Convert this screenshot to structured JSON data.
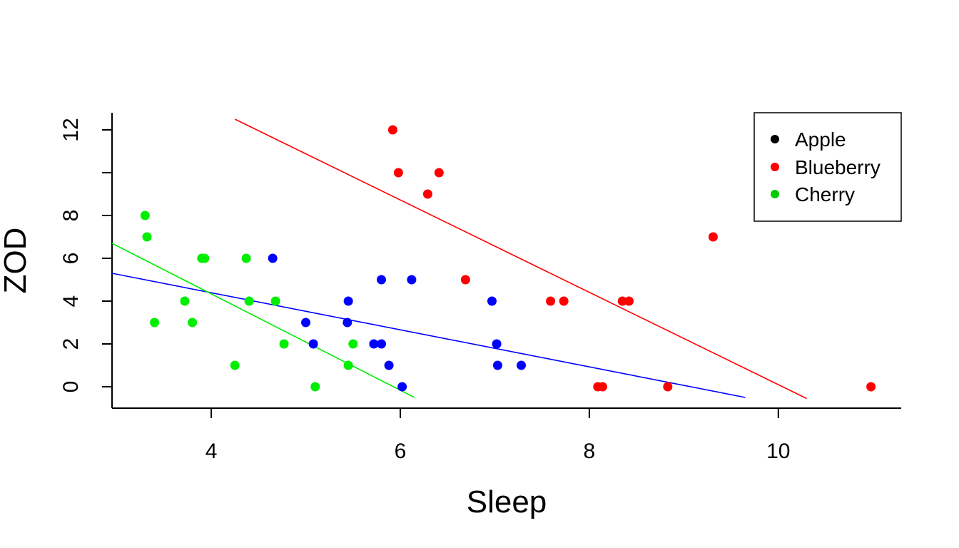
{
  "chart_data": {
    "type": "scatter",
    "title": "",
    "xlabel": "Sleep",
    "ylabel": "ZOD",
    "xlim": [
      2.95,
      11.3
    ],
    "ylim": [
      -1.0,
      12.8
    ],
    "x_ticks": [
      4,
      6,
      8,
      10
    ],
    "y_ticks": [
      0,
      2,
      4,
      6,
      8,
      10,
      12
    ],
    "y_tick_labels": [
      "0",
      "2",
      "4",
      "6",
      "8",
      "",
      "12"
    ],
    "grid": false,
    "legend_position": "top-right",
    "legend": [
      {
        "label": "Apple",
        "color": "#000000"
      },
      {
        "label": "Blueberry",
        "color": "#ff0000"
      },
      {
        "label": "Cherry",
        "color": "#00cd00"
      }
    ],
    "series": [
      {
        "name": "Blueberry",
        "color": "#ff0000",
        "points": [
          [
            5.92,
            12
          ],
          [
            5.98,
            10
          ],
          [
            6.41,
            10
          ],
          [
            6.29,
            9
          ],
          [
            9.31,
            7
          ],
          [
            6.69,
            5
          ],
          [
            7.59,
            4
          ],
          [
            7.73,
            4
          ],
          [
            8.35,
            4
          ],
          [
            8.42,
            4
          ],
          [
            8.09,
            0
          ],
          [
            8.14,
            0
          ],
          [
            8.83,
            0
          ],
          [
            10.98,
            0
          ]
        ],
        "fit_line": {
          "from": [
            4.25,
            12.5
          ],
          "to": [
            10.3,
            -0.55
          ]
        }
      },
      {
        "name": "",
        "color": "#0000ff",
        "points": [
          [
            4.65,
            6
          ],
          [
            5.8,
            5
          ],
          [
            6.12,
            5
          ],
          [
            5.45,
            4
          ],
          [
            6.97,
            4
          ],
          [
            5.0,
            3
          ],
          [
            5.44,
            3
          ],
          [
            5.08,
            2
          ],
          [
            5.72,
            2
          ],
          [
            5.8,
            2
          ],
          [
            7.02,
            2
          ],
          [
            5.88,
            1
          ],
          [
            7.03,
            1
          ],
          [
            7.28,
            1
          ],
          [
            6.02,
            0
          ]
        ],
        "fit_line": {
          "from": [
            2.95,
            5.3
          ],
          "to": [
            9.65,
            -0.5
          ]
        }
      },
      {
        "name": "Cherry",
        "color": "#00ee00",
        "points": [
          [
            3.3,
            8
          ],
          [
            3.32,
            7
          ],
          [
            3.9,
            6
          ],
          [
            3.93,
            6
          ],
          [
            4.37,
            6
          ],
          [
            3.72,
            4
          ],
          [
            4.4,
            4
          ],
          [
            4.68,
            4
          ],
          [
            3.4,
            3
          ],
          [
            3.8,
            3
          ],
          [
            4.77,
            2
          ],
          [
            5.5,
            2
          ],
          [
            4.25,
            1
          ],
          [
            5.45,
            1
          ],
          [
            5.1,
            0
          ]
        ],
        "fit_line": {
          "from": [
            2.95,
            6.7
          ],
          "to": [
            6.15,
            -0.5
          ]
        }
      }
    ]
  }
}
